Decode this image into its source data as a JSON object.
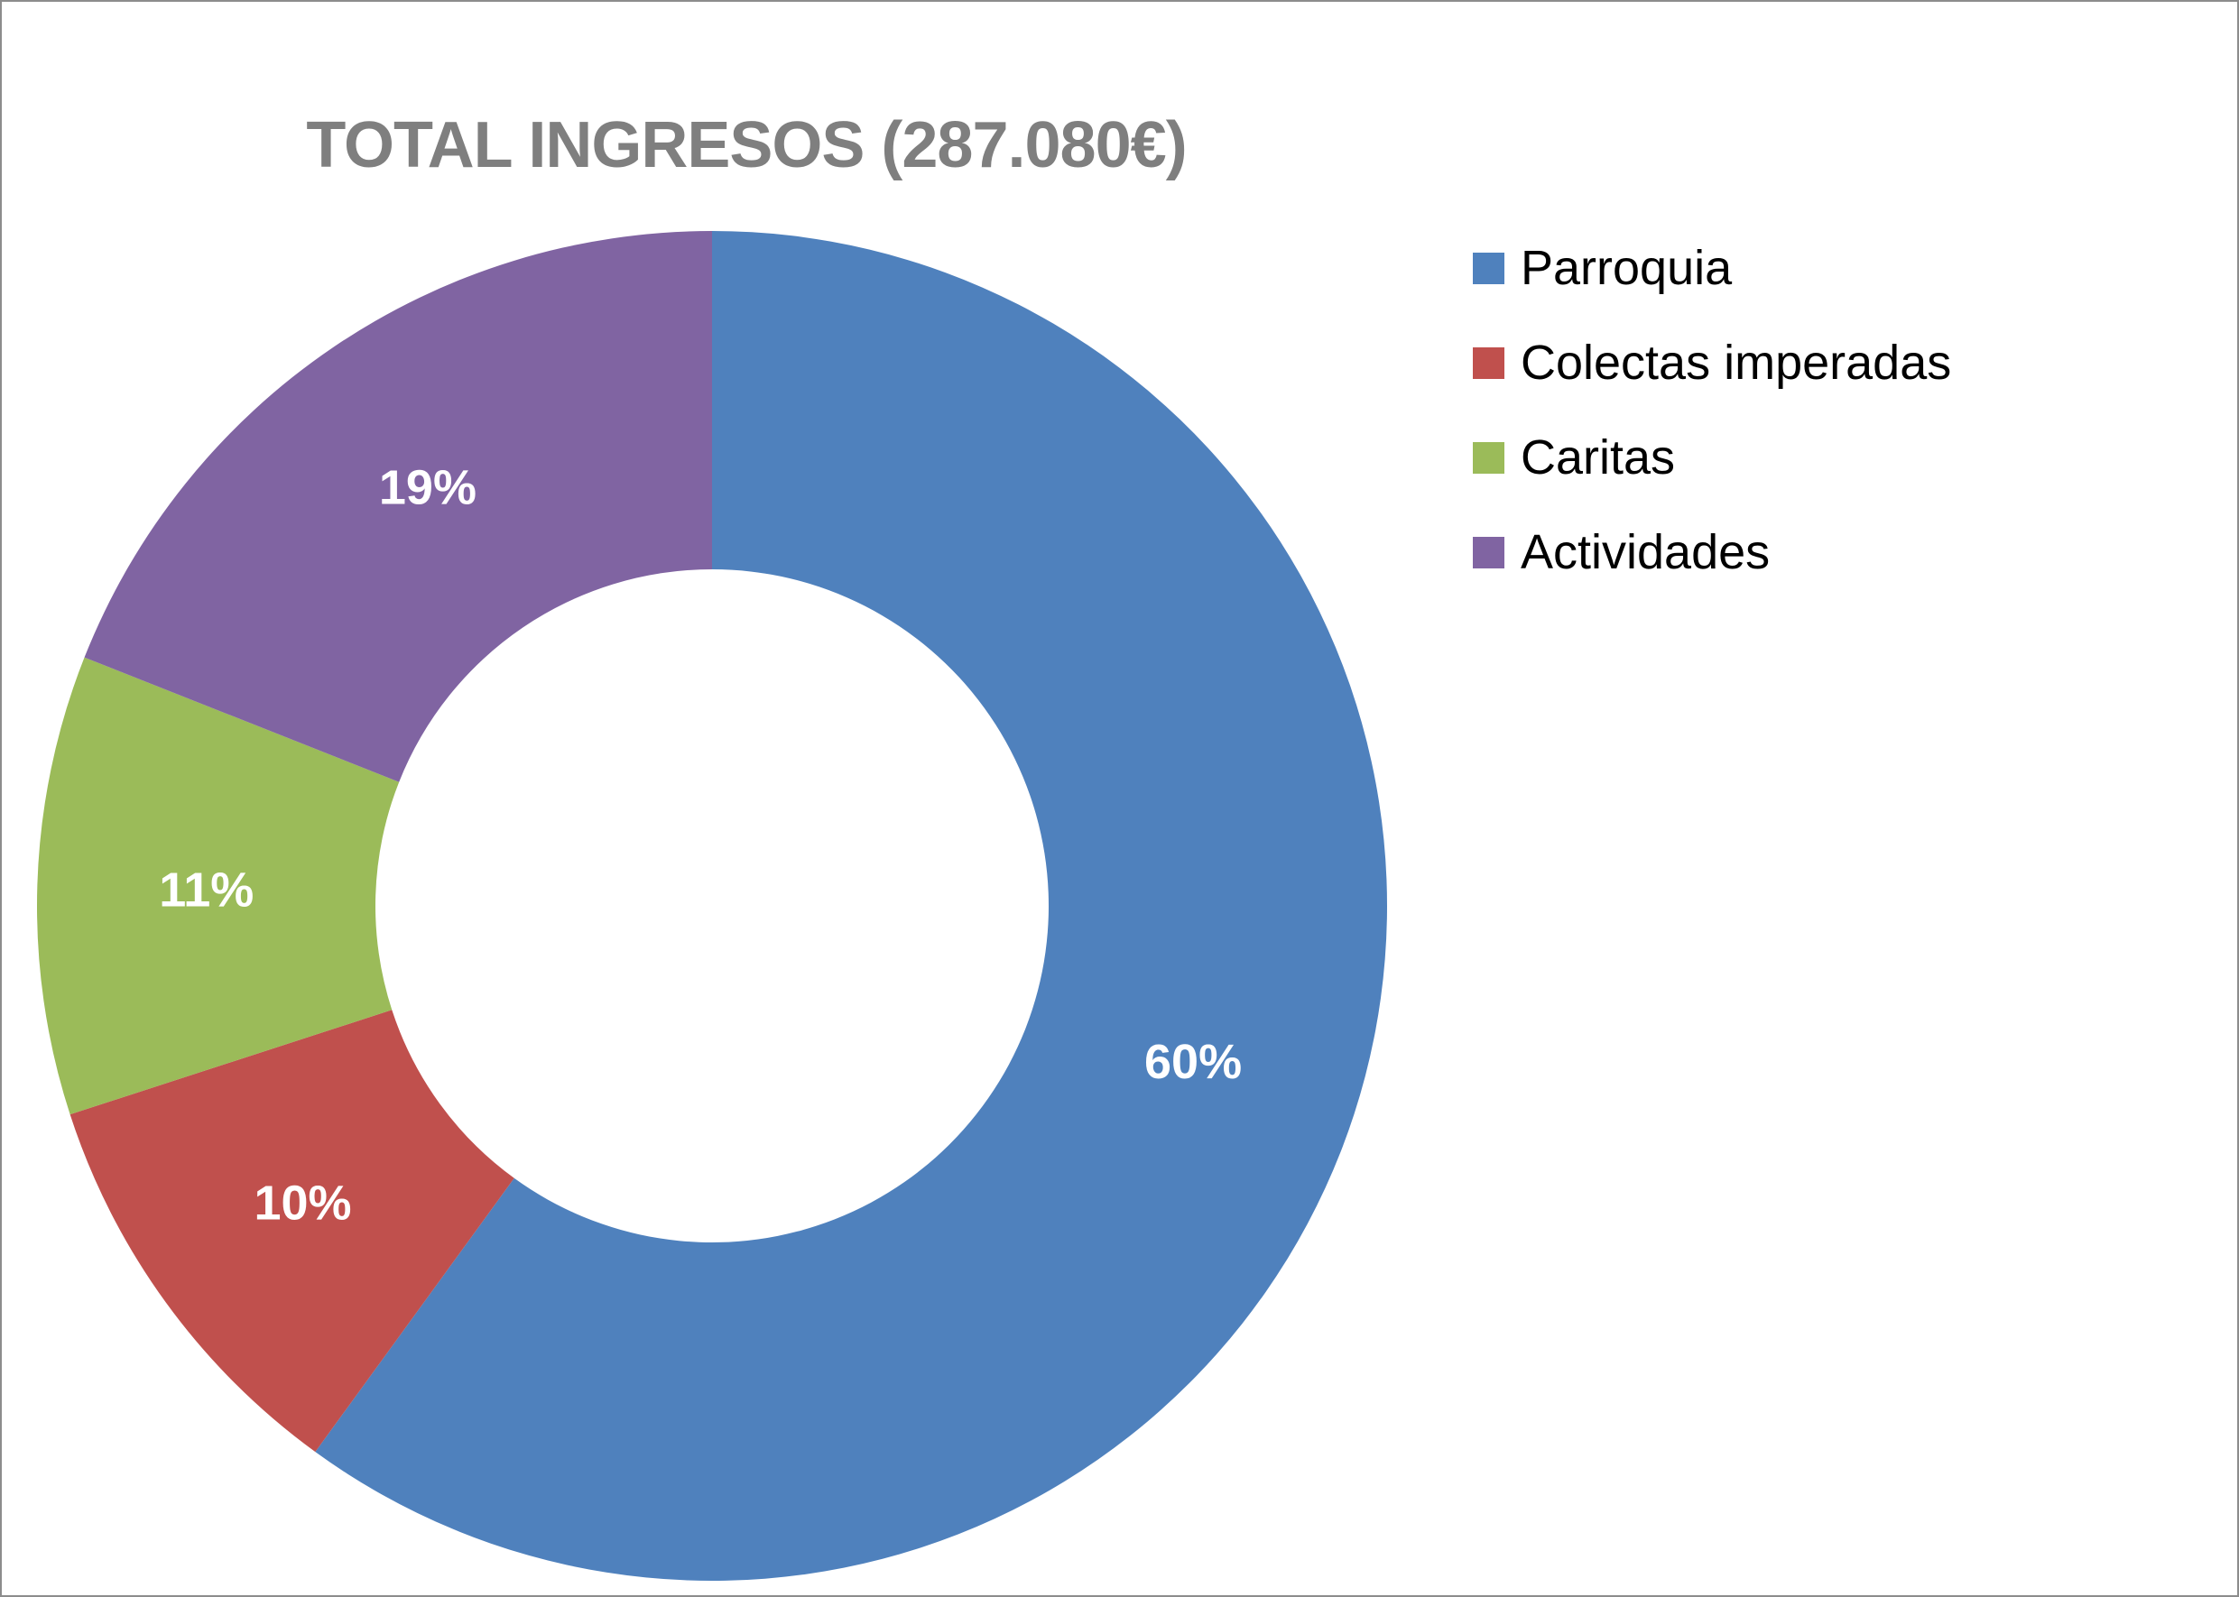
{
  "chart_data": {
    "type": "pie",
    "variant": "donut",
    "title": "TOTAL INGRESOS (287.080€)",
    "start_angle_deg": 0,
    "direction": "clockwise",
    "legend_position": "right",
    "series": [
      {
        "name": "Parroquia",
        "value": 60,
        "label": "60%",
        "color": "#4f81bd"
      },
      {
        "name": "Colectas imperadas",
        "value": 10,
        "label": "10%",
        "color": "#c0504d"
      },
      {
        "name": "Caritas",
        "value": 11,
        "label": "11%",
        "color": "#9bbb59"
      },
      {
        "name": "Actividades",
        "value": 19,
        "label": "19%",
        "color": "#8064a2"
      }
    ]
  }
}
